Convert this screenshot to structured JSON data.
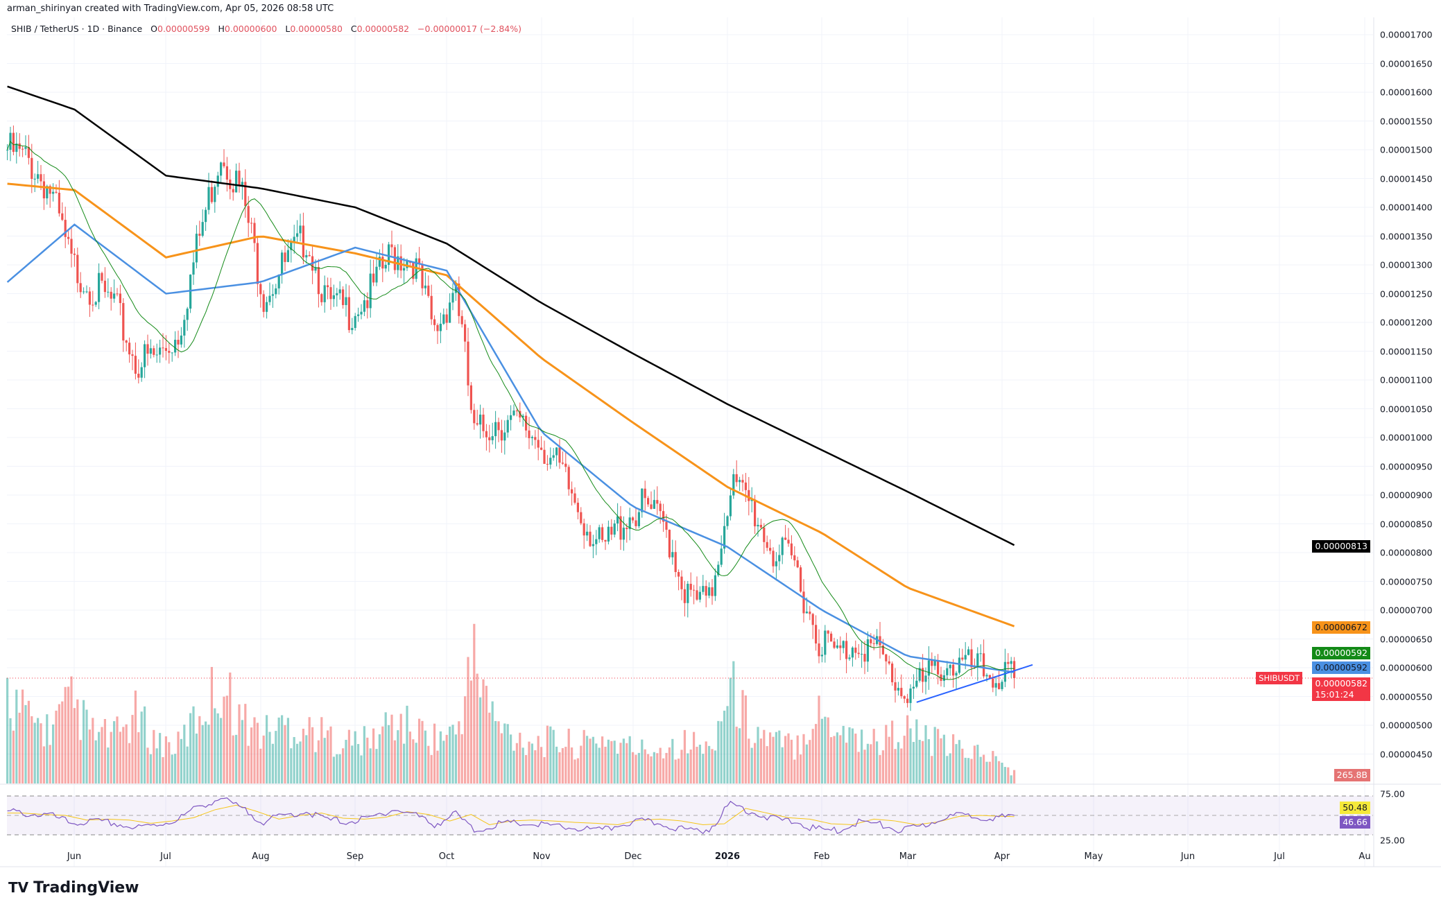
{
  "header": {
    "attribution": "arman_shirinyan created with TradingView.com, Apr 05, 2026 08:58 UTC"
  },
  "legend": {
    "symbol": "SHIB / TetherUS · 1D · Binance",
    "o_label": "O",
    "o": "0.00000599",
    "h_label": "H",
    "h": "0.00000600",
    "l_label": "L",
    "l": "0.00000580",
    "c_label": "C",
    "c": "0.00000582",
    "change": "−0.00000017 (−2.84%)"
  },
  "price_axis": [
    "0.00001700",
    "0.00001650",
    "0.00001600",
    "0.00001550",
    "0.00001500",
    "0.00001450",
    "0.00001400",
    "0.00001350",
    "0.00001300",
    "0.00001250",
    "0.00001200",
    "0.00001150",
    "0.00001100",
    "0.00001050",
    "0.00001000",
    "0.00000950",
    "0.00000900",
    "0.00000850",
    "0.00000800",
    "0.00000750",
    "0.00000700",
    "0.00000650",
    "0.00000600",
    "0.00000550",
    "0.00000500",
    "0.00000450"
  ],
  "tags": {
    "ma200": {
      "value": "0.00000813",
      "color": "#000000"
    },
    "ma100": {
      "value": "0.00000672",
      "color": "#f7931a"
    },
    "ma20": {
      "value": "0.00000592",
      "color": "#138a17"
    },
    "ma50": {
      "value": "0.00000592",
      "color": "#4a90e2"
    },
    "last": {
      "symbol": "SHIBUSDT",
      "value": "0.00000582",
      "countdown": "15:01:24",
      "color": "#f23645"
    },
    "volume": {
      "value": "265.8B",
      "color": "#e57373"
    }
  },
  "rsi_axis": {
    "upper": "75.00",
    "lower": "25.00",
    "ma": "50.48",
    "rsi": "46.66",
    "ma_color": "#f5e93a",
    "rsi_color": "#7e57c2"
  },
  "time_axis": [
    "Jun",
    "Jul",
    "Aug",
    "Sep",
    "Oct",
    "Nov",
    "Dec",
    "2026",
    "Feb",
    "Mar",
    "Apr",
    "May",
    "Jun",
    "Jul",
    "Au"
  ],
  "logo": "TradingView",
  "chart_data": {
    "type": "candlestick",
    "unit": "price × 1e-8 USDT",
    "ylim": [
      450,
      1700
    ],
    "up_color": "#26a69a",
    "down_color": "#ef5350",
    "weekly_close": {
      "dates": [
        "2025-05-10",
        "2025-05-17",
        "2025-05-24",
        "2025-05-31",
        "2025-06-07",
        "2025-06-14",
        "2025-06-21",
        "2025-06-28",
        "2025-07-05",
        "2025-07-12",
        "2025-07-19",
        "2025-07-26",
        "2025-08-02",
        "2025-08-09",
        "2025-08-16",
        "2025-08-23",
        "2025-08-30",
        "2025-09-06",
        "2025-09-13",
        "2025-09-20",
        "2025-09-27",
        "2025-10-04",
        "2025-10-10",
        "2025-10-17",
        "2025-10-24",
        "2025-10-31",
        "2025-11-07",
        "2025-11-14",
        "2025-11-21",
        "2025-11-28",
        "2025-12-05",
        "2025-12-12",
        "2025-12-19",
        "2025-12-26",
        "2026-01-02",
        "2026-01-09",
        "2026-01-16",
        "2026-01-23",
        "2026-01-30",
        "2026-02-06",
        "2026-02-13",
        "2026-02-20",
        "2026-02-27",
        "2026-03-06",
        "2026-03-13",
        "2026-03-20",
        "2026-03-27",
        "2026-04-05"
      ],
      "close": [
        1500,
        1480,
        1430,
        1300,
        1260,
        1230,
        1130,
        1140,
        1180,
        1350,
        1500,
        1420,
        1250,
        1300,
        1350,
        1230,
        1220,
        1250,
        1320,
        1310,
        1180,
        1270,
        1000,
        1030,
        1020,
        1000,
        940,
        870,
        800,
        860,
        880,
        840,
        720,
        710,
        920,
        880,
        800,
        780,
        660,
        620,
        650,
        620,
        560,
        570,
        610,
        600,
        590,
        582
      ],
      "volume_B": [
        2200,
        1500,
        1300,
        1900,
        1200,
        1100,
        1600,
        1000,
        900,
        1700,
        2400,
        1500,
        1200,
        1400,
        1300,
        1100,
        1000,
        1000,
        1500,
        1300,
        1100,
        1200,
        3000,
        1400,
        1100,
        1000,
        1000,
        900,
        1100,
        900,
        800,
        900,
        1000,
        800,
        2300,
        1300,
        1000,
        900,
        1700,
        1400,
        1100,
        1000,
        1300,
        1100,
        900,
        800,
        700,
        266
      ],
      "rsi": [
        55,
        52,
        50,
        40,
        42,
        40,
        33,
        38,
        45,
        62,
        72,
        58,
        42,
        50,
        55,
        44,
        42,
        46,
        58,
        52,
        38,
        52,
        30,
        38,
        40,
        38,
        35,
        33,
        30,
        40,
        42,
        38,
        30,
        32,
        65,
        55,
        45,
        42,
        32,
        30,
        42,
        38,
        30,
        36,
        48,
        50,
        48,
        46.66
      ]
    },
    "moving_averages": {
      "dates": [
        "2025-05-10",
        "2025-06-01",
        "2025-07-01",
        "2025-08-01",
        "2025-09-01",
        "2025-10-01",
        "2025-11-01",
        "2025-12-01",
        "2026-01-01",
        "2026-02-01",
        "2026-03-01",
        "2026-04-05"
      ],
      "ma200": [
        1610,
        1570,
        1455,
        1433,
        1400,
        1337,
        1234,
        1146,
        1058,
        978,
        906,
        813
      ],
      "ma100": [
        1441,
        1430,
        1313,
        1350,
        1320,
        1282,
        1138,
        1026,
        914,
        834,
        739,
        672
      ],
      "ma50": [
        1270,
        1370,
        1250,
        1270,
        1330,
        1290,
        1010,
        880,
        810,
        700,
        620,
        592
      ]
    },
    "trendline": {
      "from": {
        "date": "2026-03-04",
        "price": 540
      },
      "to": {
        "date": "2026-04-11",
        "price": 605
      }
    }
  }
}
